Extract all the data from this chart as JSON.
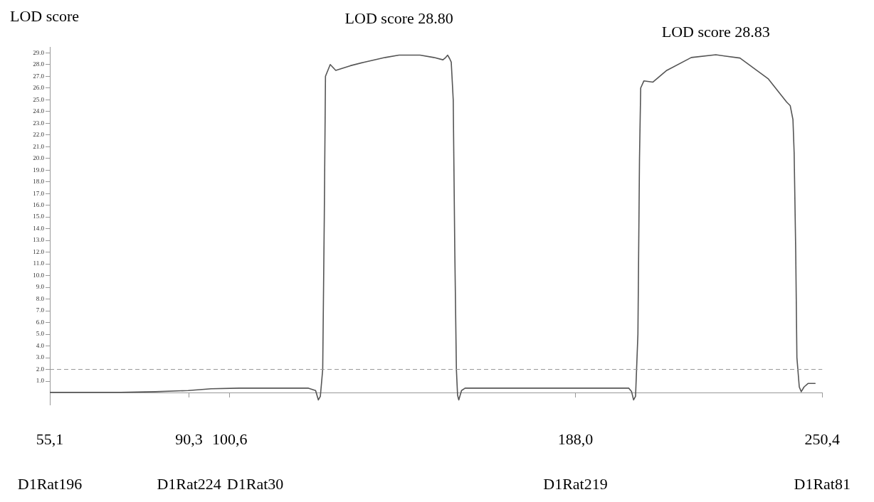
{
  "chart_data": {
    "type": "line",
    "ylabel": "LOD score",
    "x": [
      55.1,
      73,
      81.8,
      90.1,
      95.9,
      103,
      120.5,
      122.3,
      123,
      123.5,
      124.1,
      124.5,
      124.8,
      126,
      127.4,
      131.1,
      134.6,
      139.9,
      143.4,
      148.7,
      152.2,
      154.5,
      155.2,
      155.7,
      156.2,
      156.6,
      157.1,
      157.5,
      157.9,
      158.2,
      158.5,
      159.2,
      160.1,
      188.1,
      201.5,
      202.2,
      202.7,
      203.2,
      203.8,
      204.2,
      204.5,
      205.3,
      207.6,
      211.1,
      217.3,
      223.5,
      229.6,
      236.7,
      241.4,
      242.3,
      243,
      243.3,
      243.7,
      244,
      244.6,
      245.1,
      245.8,
      246.8,
      248.6
    ],
    "series": [
      {
        "color": "#555555",
        "values": [
          0.05,
          0.05,
          0.1,
          0.2,
          0.35,
          0.4,
          0.4,
          0.2,
          -0.6,
          -0.3,
          2,
          15,
          27,
          28,
          27.5,
          27.9,
          28.2,
          28.6,
          28.8,
          28.8,
          28.6,
          28.4,
          28.6,
          28.8,
          28.5,
          28.2,
          25,
          12,
          2,
          -0.2,
          -0.6,
          0.2,
          0.4,
          0.4,
          0.4,
          0.1,
          -0.6,
          -0.3,
          5,
          20,
          26,
          26.6,
          26.5,
          27.5,
          28.6,
          28.83,
          28.55,
          26.8,
          24.8,
          24.5,
          23.3,
          20.5,
          12,
          3,
          0.5,
          0.1,
          0.5,
          0.8,
          0.8
        ]
      }
    ],
    "xlim": [
      55.1,
      250.4
    ],
    "xticks": [
      {
        "value": 55.1,
        "label": "55,1"
      },
      {
        "value": 90.3,
        "label": "90,3"
      },
      {
        "value": 100.6,
        "label": "100,6"
      },
      {
        "value": 188.0,
        "label": "188,0"
      },
      {
        "value": 250.4,
        "label": "250,4"
      }
    ],
    "ylim": [
      -1,
      29.5
    ],
    "yticks": [
      {
        "value": 1,
        "label": "1.0"
      },
      {
        "value": 2,
        "label": "2.0"
      },
      {
        "value": 3,
        "label": "3.0"
      },
      {
        "value": 4,
        "label": "4.0"
      },
      {
        "value": 5,
        "label": "5.0"
      },
      {
        "value": 6,
        "label": "6.0"
      },
      {
        "value": 7,
        "label": "7.0"
      },
      {
        "value": 8,
        "label": "8.0"
      },
      {
        "value": 9,
        "label": "9.0"
      },
      {
        "value": 10,
        "label": "10.0"
      },
      {
        "value": 11,
        "label": "11.0"
      },
      {
        "value": 12,
        "label": "12.0"
      },
      {
        "value": 13,
        "label": "13.0"
      },
      {
        "value": 14,
        "label": "14.0"
      },
      {
        "value": 15,
        "label": "15.0"
      },
      {
        "value": 16,
        "label": "16.0"
      },
      {
        "value": 17,
        "label": "17.0"
      },
      {
        "value": 18,
        "label": "18.0"
      },
      {
        "value": 19,
        "label": "19.0"
      },
      {
        "value": 20,
        "label": "20.0"
      },
      {
        "value": 21,
        "label": "21.0"
      },
      {
        "value": 22,
        "label": "22.0"
      },
      {
        "value": 23,
        "label": "23.0"
      },
      {
        "value": 24,
        "label": "24.0"
      },
      {
        "value": 25,
        "label": "25.0"
      },
      {
        "value": 26,
        "label": "26.0"
      },
      {
        "value": 27,
        "label": "27.0"
      },
      {
        "value": 28,
        "label": "28.0"
      },
      {
        "value": 29,
        "label": "29.0"
      }
    ],
    "ref_lines": [
      {
        "axis": "y",
        "value": 2,
        "color": "#999999",
        "line_style": "dashed"
      }
    ],
    "annotations": [
      {
        "text": "LOD score 28.80",
        "x": 143.4,
        "y": 28.8
      },
      {
        "text": "LOD score 28.83",
        "x": 223.5,
        "y": 28.83
      },
      "D1Rat196",
      "D1Rat224",
      "D1Rat30",
      "D1Rat219",
      "D1Rat81"
    ],
    "grid": false,
    "legend": false,
    "marker": "none",
    "line_style": "solid"
  }
}
